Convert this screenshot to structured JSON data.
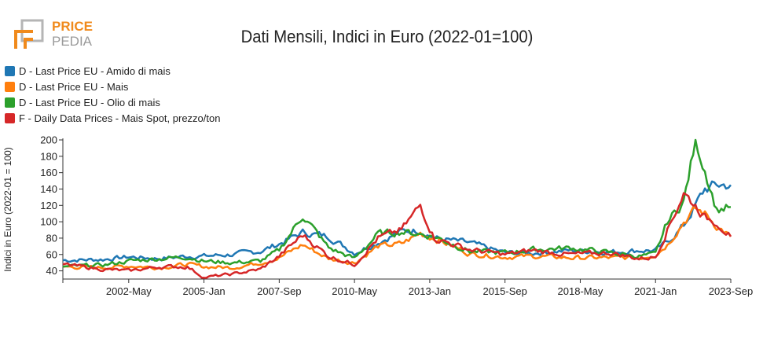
{
  "brand": {
    "line1": "PRICE",
    "line2": "PEDIA",
    "color_orange": "#f08a1c",
    "color_gray": "#9a9a9a"
  },
  "chart_data": {
    "type": "line",
    "title": "Dati Mensili, Indici in Euro (2022-01=100)",
    "xlabel": "",
    "ylabel": "Indici in Euro (2022-01 = 100)",
    "ylim": [
      30,
      200
    ],
    "xlim": [
      "2000-01",
      "2023-09"
    ],
    "yticks": [
      40,
      60,
      80,
      100,
      120,
      140,
      160,
      180,
      200
    ],
    "xticks": [
      "2002-May",
      "2005-Jan",
      "2007-Sep",
      "2010-May",
      "2013-Jan",
      "2015-Sep",
      "2018-May",
      "2021-Jan",
      "2023-Sep"
    ],
    "grid": false,
    "legend_position": "top-left",
    "x_keyframes": [
      "2000-01",
      "2001-06",
      "2002-05",
      "2003-06",
      "2004-06",
      "2005-01",
      "2006-01",
      "2007-01",
      "2007-09",
      "2008-07",
      "2009-06",
      "2010-05",
      "2011-03",
      "2012-01",
      "2012-09",
      "2013-03",
      "2014-06",
      "2015-09",
      "2016-09",
      "2018-01",
      "2019-06",
      "2020-06",
      "2021-01",
      "2021-06",
      "2022-01",
      "2022-06",
      "2022-10",
      "2023-03",
      "2023-09"
    ],
    "series": [
      {
        "name": "D - Last Price EU - Amido di mais",
        "color": "#1f77b4",
        "values": [
          53,
          54,
          57,
          55,
          58,
          58,
          60,
          64,
          73,
          87,
          82,
          62,
          75,
          88,
          90,
          80,
          74,
          62,
          62,
          65,
          63,
          65,
          65,
          75,
          95,
          120,
          140,
          145,
          145
        ]
      },
      {
        "name": "D - Last Price EU - Mais",
        "color": "#ff7f0e",
        "values": [
          45,
          44,
          46,
          44,
          48,
          45,
          44,
          50,
          56,
          72,
          55,
          50,
          70,
          73,
          86,
          80,
          61,
          57,
          58,
          56,
          56,
          56,
          60,
          72,
          100,
          115,
          110,
          95,
          82
        ]
      },
      {
        "name": "D - Last Price EU - Olio di mais",
        "color": "#2ca02c",
        "values": [
          45,
          47,
          52,
          55,
          57,
          52,
          50,
          52,
          65,
          108,
          68,
          55,
          85,
          88,
          85,
          82,
          64,
          62,
          66,
          68,
          62,
          58,
          60,
          100,
          125,
          198,
          165,
          115,
          118
        ]
      },
      {
        "name": "F - Daily Data Prices - Mais Spot, prezzo/ton",
        "color": "#d62728",
        "values": [
          48,
          42,
          40,
          45,
          45,
          32,
          36,
          42,
          58,
          84,
          58,
          48,
          80,
          90,
          120,
          80,
          66,
          60,
          65,
          60,
          62,
          55,
          57,
          90,
          135,
          120,
          105,
          100,
          82
        ]
      }
    ]
  }
}
